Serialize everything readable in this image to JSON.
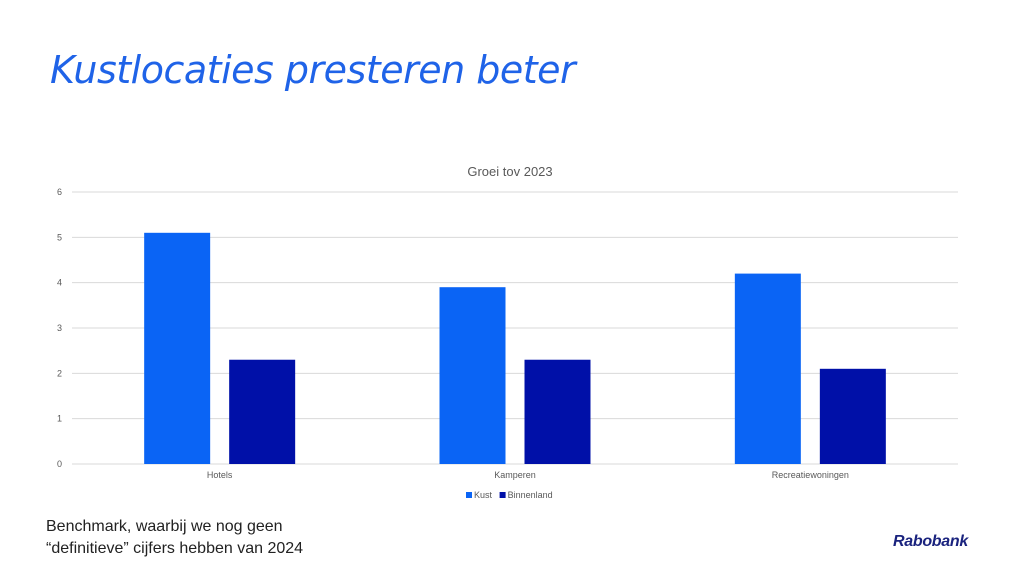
{
  "slide": {
    "title": "Kustlocaties presteren beter",
    "footnote_line1": "Benchmark, waarbij we nog geen",
    "footnote_line2": "“definitieve” cijfers hebben van 2024",
    "logo_text": "Rabobank"
  },
  "colors": {
    "title": "#1f63e8",
    "kust": "#0a64f5",
    "binnenland": "#0010a8",
    "grid": "#d9d9d9",
    "axis_text": "#595959"
  },
  "chart_data": {
    "type": "bar",
    "title": "Groei tov 2023",
    "categories": [
      "Hotels",
      "Kamperen",
      "Recreatiewoningen"
    ],
    "series": [
      {
        "name": "Kust",
        "values": [
          5.1,
          3.9,
          4.2
        ]
      },
      {
        "name": "Binnenland",
        "values": [
          2.3,
          2.3,
          2.1
        ]
      }
    ],
    "ylim": [
      0,
      6
    ],
    "yticks": [
      "0",
      "1",
      "2",
      "3",
      "4",
      "5",
      "6"
    ],
    "grid": true,
    "legend": "bottom-center"
  }
}
